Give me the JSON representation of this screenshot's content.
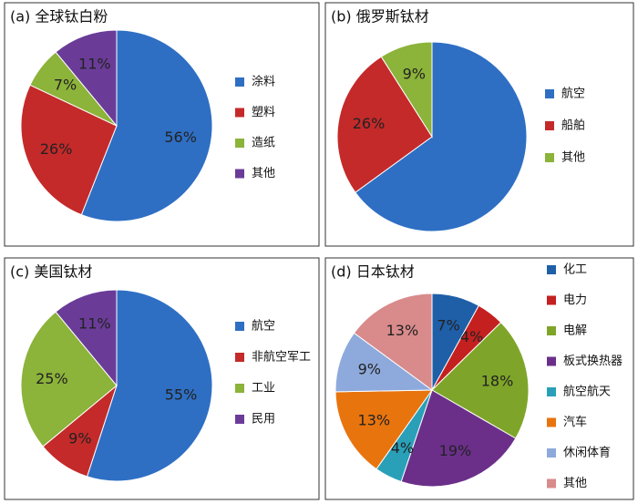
{
  "chart_data": [
    {
      "type": "pie",
      "title": "(a) 全球钛白粉",
      "categories": [
        "涂料",
        "塑料",
        "造纸",
        "其他"
      ],
      "values": [
        56,
        26,
        7,
        11
      ],
      "value_labels": [
        "56%",
        "26%",
        "7%",
        "11%"
      ],
      "colors": [
        "#2e6fc4",
        "#c42a2a",
        "#8cb33a",
        "#6a3c98"
      ]
    },
    {
      "type": "pie",
      "title": "(b) 俄罗斯钛材",
      "categories": [
        "航空",
        "船舶",
        "其他"
      ],
      "values": [
        65,
        26,
        9
      ],
      "value_labels": [
        null,
        "26%",
        "9%"
      ],
      "colors": [
        "#2e6fc4",
        "#c42a2a",
        "#8cb33a"
      ]
    },
    {
      "type": "pie",
      "title": "(c) 美国钛材",
      "categories": [
        "航空",
        "非航空军工",
        "工业",
        "民用"
      ],
      "values": [
        55,
        9,
        25,
        11
      ],
      "value_labels": [
        "55%",
        "9%",
        "25%",
        "11%"
      ],
      "colors": [
        "#2e6fc4",
        "#c42a2a",
        "#8cb33a",
        "#6a3c98"
      ]
    },
    {
      "type": "pie",
      "title": "(d) 日本钛材",
      "categories": [
        "化工",
        "电力",
        "电解",
        "板式换热器",
        "航空航天",
        "汽车",
        "休闲体育",
        "其他"
      ],
      "values": [
        7,
        4,
        18,
        19,
        4,
        13,
        9,
        13
      ],
      "value_labels": [
        "7%",
        "4%",
        "18%",
        "19%",
        "4%",
        "13%",
        "9%",
        "13%"
      ],
      "colors": [
        "#1f5fa8",
        "#c42020",
        "#7ea529",
        "#6b2f8a",
        "#2aa0b8",
        "#e8740e",
        "#8eaadc",
        "#d98a8a"
      ]
    }
  ]
}
